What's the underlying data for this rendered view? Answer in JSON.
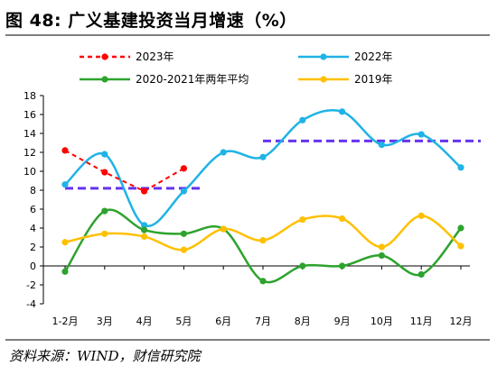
{
  "header": {
    "title": "图 48:  广义基建投资当月增速（%）"
  },
  "footer": {
    "source": "资料来源：WIND，财信研究院"
  },
  "chart_data": {
    "type": "line",
    "categories": [
      "1-2月",
      "3月",
      "4月",
      "5月",
      "6月",
      "7月",
      "8月",
      "9月",
      "10月",
      "11月",
      "12月"
    ],
    "ylim": [
      -4,
      18
    ],
    "yticks": [
      18,
      16,
      14,
      12,
      10,
      8,
      6,
      4,
      2,
      0,
      -2,
      -4
    ],
    "grid": false,
    "legend": "top",
    "series": [
      {
        "name": "2023年",
        "color": "#ff0000",
        "dashed": true,
        "values": [
          12.2,
          9.9,
          7.9,
          10.3,
          null,
          null,
          null,
          null,
          null,
          null,
          null
        ]
      },
      {
        "name": "2022年",
        "color": "#1fb3e6",
        "dashed": false,
        "values": [
          8.6,
          11.8,
          4.3,
          7.9,
          12.0,
          11.5,
          15.4,
          16.3,
          12.8,
          13.9,
          10.4
        ]
      },
      {
        "name": "2020-2021年两年平均",
        "color": "#2ea32e",
        "dashed": false,
        "values": [
          -0.6,
          5.8,
          3.8,
          3.4,
          3.9,
          -1.6,
          0.0,
          0.0,
          1.1,
          -0.9,
          4.0
        ]
      },
      {
        "name": "2019年",
        "color": "#ffc000",
        "dashed": false,
        "values": [
          2.5,
          3.4,
          3.1,
          1.7,
          3.9,
          2.7,
          4.9,
          5.0,
          2.0,
          5.3,
          2.1
        ]
      }
    ],
    "reference_lines": [
      {
        "color": "#6633ee",
        "from": "1-2月",
        "to": "5月",
        "value": 8.2
      },
      {
        "color": "#6633ee",
        "from": "7月",
        "to": "12月",
        "value": 13.2
      }
    ]
  }
}
